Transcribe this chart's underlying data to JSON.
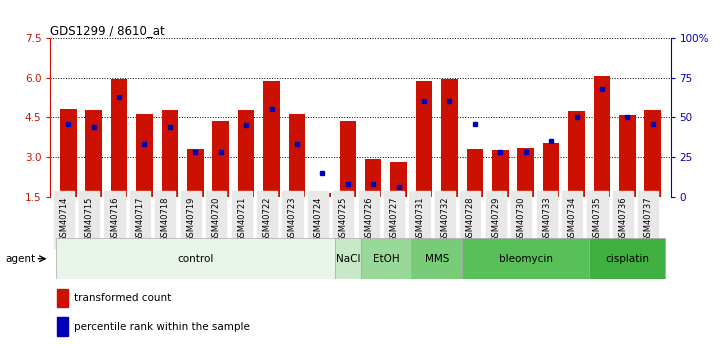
{
  "title": "GDS1299 / 8610_at",
  "samples": [
    "GSM40714",
    "GSM40715",
    "GSM40716",
    "GSM40717",
    "GSM40718",
    "GSM40719",
    "GSM40720",
    "GSM40721",
    "GSM40722",
    "GSM40723",
    "GSM40724",
    "GSM40725",
    "GSM40726",
    "GSM40727",
    "GSM40731",
    "GSM40732",
    "GSM40728",
    "GSM40729",
    "GSM40730",
    "GSM40733",
    "GSM40734",
    "GSM40735",
    "GSM40736",
    "GSM40737"
  ],
  "bar_values": [
    4.8,
    4.78,
    5.93,
    4.63,
    4.78,
    3.32,
    4.35,
    4.78,
    5.87,
    4.63,
    1.65,
    4.35,
    2.93,
    2.82,
    5.87,
    5.93,
    3.32,
    3.28,
    3.35,
    3.52,
    4.72,
    6.07,
    4.57,
    4.78
  ],
  "percentile_values": [
    46,
    44,
    63,
    33,
    44,
    28,
    28,
    45,
    55,
    33,
    15,
    8,
    8,
    6,
    60,
    60,
    46,
    28,
    28,
    35,
    50,
    68,
    50,
    46
  ],
  "agents": [
    {
      "label": "control",
      "start": 0,
      "end": 11,
      "color": "#e8f5e8"
    },
    {
      "label": "NaCl",
      "start": 11,
      "end": 12,
      "color": "#c8e8c8"
    },
    {
      "label": "EtOH",
      "start": 12,
      "end": 14,
      "color": "#98d898"
    },
    {
      "label": "MMS",
      "start": 14,
      "end": 16,
      "color": "#78cc78"
    },
    {
      "label": "bleomycin",
      "start": 16,
      "end": 21,
      "color": "#58c058"
    },
    {
      "label": "cisplatin",
      "start": 21,
      "end": 24,
      "color": "#40b040"
    }
  ],
  "ylim_left": [
    1.5,
    7.5
  ],
  "ylim_right": [
    0,
    100
  ],
  "yticks_left": [
    1.5,
    3.0,
    4.5,
    6.0,
    7.5
  ],
  "yticks_right": [
    0,
    25,
    50,
    75,
    100
  ],
  "bar_color": "#cc1100",
  "dot_color": "#0000bb",
  "bar_width": 0.65
}
